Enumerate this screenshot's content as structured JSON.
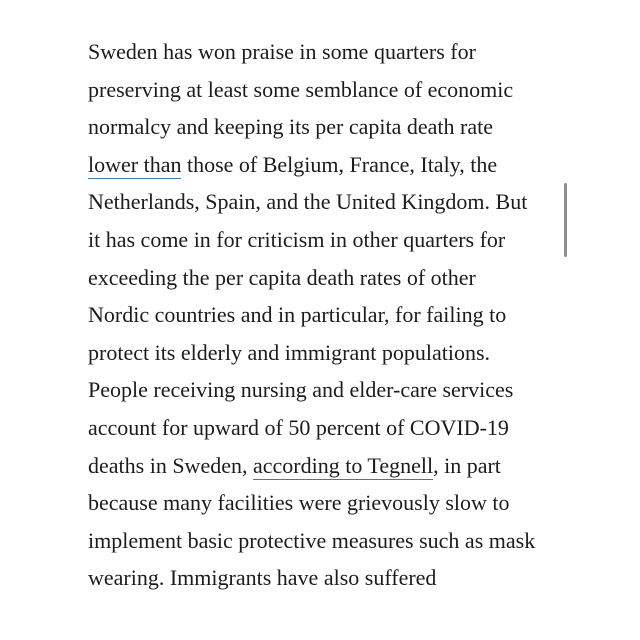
{
  "article": {
    "lines": [
      {
        "text": "Sweden has won praise in some quarters for"
      },
      {
        "text": "preserving at least some semblance of economic"
      },
      {
        "text": "normalcy and keeping its per capita death rate"
      },
      {
        "before": "",
        "link": "lower than",
        "after": " those of Belgium, France, Italy, the"
      },
      {
        "text": "Netherlands, Spain, and the United Kingdom. But"
      },
      {
        "text": "it has come in for criticism in other quarters for"
      },
      {
        "text": "exceeding the per capita death rates of other"
      },
      {
        "text": "Nordic countries and in particular, for failing to"
      },
      {
        "text": "protect its elderly and immigrant populations."
      },
      {
        "text": "People receiving nursing and elder-care services"
      },
      {
        "text": "account for upward of 50 percent of COVID-19"
      },
      {
        "before": "deaths in Sweden, ",
        "link": "according to Tegnell",
        "after": ", in part"
      },
      {
        "text": "because many facilities were grievously slow to"
      },
      {
        "text": "implement basic protective measures such as mask"
      },
      {
        "text": "wearing. Immigrants have also suffered"
      }
    ]
  },
  "colors": {
    "text": "#1c1c1c",
    "link_underline": "#3d7ab0",
    "scrollbar": "#8e8e8e",
    "background": "#ffffff"
  }
}
